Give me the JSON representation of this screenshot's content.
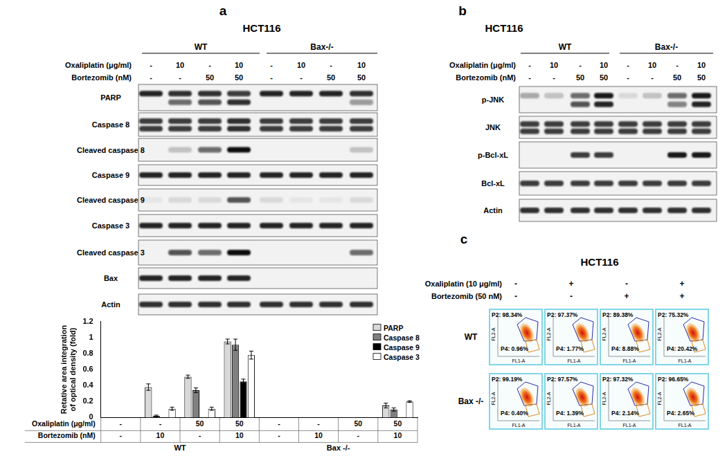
{
  "chart_data": {
    "type": "bar",
    "categories": [
      null,
      null,
      null,
      null,
      null,
      null,
      null,
      null
    ],
    "series": [
      {
        "name": "PARP",
        "color": "#d9d9d9",
        "values": [
          0,
          0.38,
          0.51,
          0.95,
          0,
          0,
          0,
          0.15
        ],
        "errors": [
          0,
          0.04,
          0.02,
          0.03,
          0,
          0,
          0,
          0.03
        ]
      },
      {
        "name": "Caspase 8",
        "color": "#808080",
        "values": [
          0,
          0.02,
          0.34,
          0.91,
          0,
          0,
          0,
          0.1
        ],
        "errors": [
          0,
          0.01,
          0.03,
          0.07,
          0,
          0,
          0,
          0.02
        ]
      },
      {
        "name": "Caspase 9",
        "color": "#000000",
        "values": [
          0,
          0,
          0,
          0.45,
          0,
          0,
          0,
          0
        ],
        "errors": [
          0,
          0,
          0,
          0.03,
          0,
          0,
          0,
          0
        ]
      },
      {
        "name": "Caspase 3",
        "color": "#ffffff",
        "values": [
          0,
          0.11,
          0.11,
          0.78,
          0,
          0,
          0,
          0.2
        ],
        "errors": [
          0,
          0.02,
          0.02,
          0.05,
          0,
          0,
          0,
          0.01
        ]
      }
    ],
    "ylabel": [
      "Retative area integration",
      "of optical density (fold)"
    ],
    "ylim": [
      0,
      1.2
    ],
    "yticks": [
      0,
      0.2,
      0.4,
      0.6,
      0.8,
      1,
      1.2
    ],
    "grid": false,
    "legend": "upper right",
    "tick_labels": "y",
    "x_table": {
      "row_labels": [
        "Oxaliplatin (μg/ml)",
        "Bortezomib (nM)"
      ],
      "groups": [
        {
          "label": "WT",
          "rows": [
            [
              "-",
              "-",
              "50",
              "50"
            ],
            [
              "-",
              "10",
              "-",
              "10"
            ]
          ]
        },
        {
          "label": "Bax -/-",
          "rows": [
            [
              "-",
              "-",
              "50",
              "50"
            ],
            [
              "-",
              "10",
              "-",
              "10"
            ]
          ]
        }
      ]
    }
  },
  "panel_a": {
    "label": "a",
    "title": "HCT116",
    "groups": [
      "WT",
      "Bax-/-"
    ],
    "treatments": [
      {
        "label": "Oxaliplatin (μg/ml)",
        "lanes": [
          "-",
          "10",
          "-",
          "10",
          "-",
          "10",
          "-",
          "10"
        ]
      },
      {
        "label": "Bortezomib (nM)",
        "lanes": [
          "-",
          "-",
          "50",
          "50",
          "-",
          "-",
          "50",
          "50"
        ]
      }
    ],
    "blots": [
      {
        "label": "PARP",
        "upper": [
          0.9,
          0.85,
          0.85,
          0.8,
          0.9,
          0.9,
          0.9,
          0.85
        ],
        "lower": [
          0,
          0.6,
          0.7,
          0.85,
          0,
          0,
          0,
          0.4
        ]
      },
      {
        "label": "Caspase 8",
        "upper": [
          0.8,
          0.8,
          0.8,
          0.85,
          0.8,
          0.8,
          0.8,
          0.8
        ],
        "lower": [
          0.8,
          0.8,
          0.8,
          0.85,
          0.8,
          0.8,
          0.8,
          0.8
        ]
      },
      {
        "label": "Cleaved caspase 8",
        "upper": [
          0,
          0.2,
          0.6,
          1,
          0,
          0,
          0,
          0.2
        ]
      },
      {
        "label": "Caspase 9",
        "upper": [
          0.9,
          0.9,
          0.9,
          0.9,
          0.9,
          0.9,
          0.9,
          0.9
        ]
      },
      {
        "label": "Cleaved caspase 9",
        "upper": [
          0.05,
          0.1,
          0.1,
          0.7,
          0.1,
          0.05,
          0.05,
          0.1
        ]
      },
      {
        "label": "Caspase 3",
        "upper": [
          0.9,
          0.9,
          0.9,
          0.9,
          0.9,
          0.9,
          0.9,
          0.9
        ]
      },
      {
        "label": "Cleaved caspase 3",
        "upper": [
          0,
          0.7,
          0.6,
          1,
          0,
          0,
          0,
          0.6
        ]
      },
      {
        "label": "Bax",
        "upper": [
          0.9,
          0.9,
          0.9,
          0.9,
          0,
          0,
          0,
          0
        ]
      },
      {
        "label": "Actin",
        "upper": [
          0.85,
          0.85,
          0.85,
          0.85,
          0.85,
          0.85,
          0.85,
          0.85
        ]
      }
    ]
  },
  "panel_b": {
    "label": "b",
    "title": "HCT116",
    "groups": [
      "WT",
      "Bax-/-"
    ],
    "treatments": [
      {
        "label": "Oxaliplatin (μg/ml)",
        "lanes": [
          "-",
          "10",
          "-",
          "10",
          "-",
          "10",
          "-",
          "10"
        ]
      },
      {
        "label": "Bortezomib (nM)",
        "lanes": [
          "-",
          "-",
          "50",
          "50",
          "-",
          "-",
          "50",
          "50"
        ]
      }
    ],
    "blots": [
      {
        "label": "p-JNK",
        "upper": [
          0.3,
          0.2,
          0.6,
          0.95,
          0.1,
          0.2,
          0.6,
          0.95
        ],
        "lower": [
          0,
          0,
          0.7,
          0.9,
          0,
          0,
          0.5,
          0.9
        ]
      },
      {
        "label": "JNK",
        "upper": [
          0.8,
          0.8,
          0.8,
          0.8,
          0.8,
          0.8,
          0.8,
          0.8
        ],
        "lower": [
          0.8,
          0.8,
          0.8,
          0.8,
          0.8,
          0.8,
          0.8,
          0.8
        ]
      },
      {
        "label": "p-Bcl-xL",
        "upper": [
          0,
          0,
          0.8,
          0.8,
          0,
          0,
          0.95,
          0.95
        ]
      },
      {
        "label": "Bcl-xL",
        "upper": [
          0.8,
          0.8,
          0.8,
          0.8,
          0.8,
          0.8,
          0.8,
          0.8
        ]
      },
      {
        "label": "Actin",
        "upper": [
          0.85,
          0.85,
          0.85,
          0.85,
          0.85,
          0.85,
          0.85,
          0.85
        ]
      }
    ]
  },
  "panel_c": {
    "label": "c",
    "title": "HCT116",
    "treatments": [
      {
        "label": "Oxaliplatin (10 μg/ml)",
        "lanes": [
          "-",
          "+",
          "-",
          "+"
        ]
      },
      {
        "label": "Bortezomib (50 nM)",
        "lanes": [
          "-",
          "-",
          "+",
          "+"
        ]
      }
    ],
    "x_axis": "FL1-A",
    "y_axis": "FL2-A",
    "rows": [
      {
        "label": "WT",
        "panels": [
          [
            "P2: 98.34%",
            "P4: 0.96%"
          ],
          [
            "P2: 97.37%",
            "P4: 1.77%"
          ],
          [
            "P2: 89.38%",
            "P4: 8.88%"
          ],
          [
            "P2: 75.32%",
            "P4: 20.42%"
          ]
        ]
      },
      {
        "label": "Bax -/-",
        "panels": [
          [
            "P2: 99.19%",
            "P4: 0.40%"
          ],
          [
            "P2: 97.57%",
            "P4: 1.39%"
          ],
          [
            "P2: 97.32%",
            "P4: 2.14%"
          ],
          [
            "P2: 96.65%",
            "P4: 2.65%"
          ]
        ]
      }
    ]
  }
}
